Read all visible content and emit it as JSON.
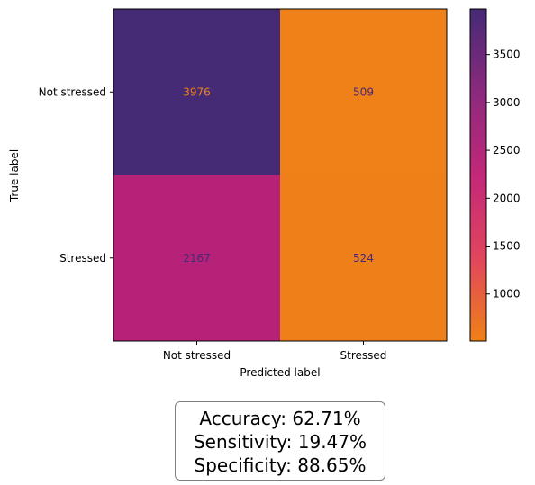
{
  "chart_data": {
    "type": "heatmap",
    "title": "",
    "xlabel": "Predicted label",
    "ylabel": "True label",
    "x_categories": [
      "Not stressed",
      "Stressed"
    ],
    "y_categories": [
      "Not stressed",
      "Stressed"
    ],
    "values": [
      [
        3976,
        509
      ],
      [
        2167,
        524
      ]
    ],
    "colormap": "inferno_r",
    "colorbar": {
      "ticks": [
        1000,
        1500,
        2000,
        2500,
        3000,
        3500
      ],
      "range": [
        509,
        3976
      ]
    },
    "colors": {
      "max": "#452a75",
      "high": "#8b2a7d",
      "mid": "#b11f7a",
      "low": "#e0465d",
      "min": "#ef8118"
    }
  },
  "metrics": {
    "accuracy": "Accuracy: 62.71%",
    "sensitivity": "Sensitivity: 19.47%",
    "specificity": "Specificity: 88.65%"
  }
}
